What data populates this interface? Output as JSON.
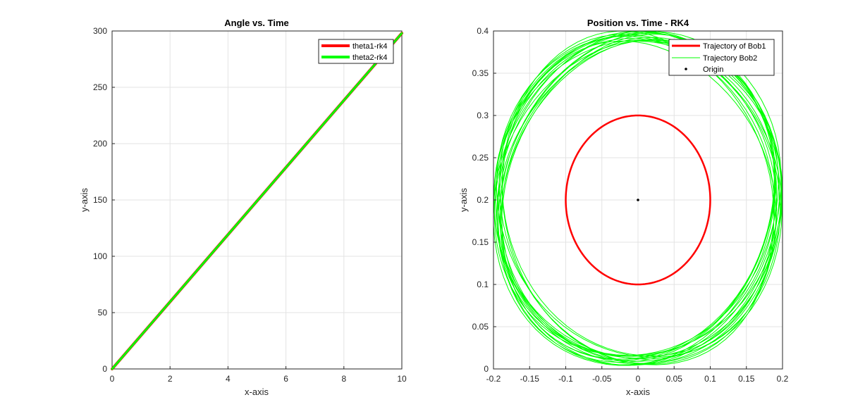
{
  "chart_data": [
    {
      "type": "line",
      "title": "Angle vs. Time",
      "xlabel": "x-axis",
      "ylabel": "y-axis",
      "xlim": [
        0,
        10
      ],
      "ylim": [
        0,
        300
      ],
      "xticks": [
        0,
        2,
        4,
        6,
        8,
        10
      ],
      "yticks": [
        0,
        50,
        100,
        150,
        200,
        250,
        300
      ],
      "grid": true,
      "legend_position": "top-right",
      "series": [
        {
          "name": "theta1-rk4",
          "color": "#ff0000",
          "x": [
            0,
            10
          ],
          "y": [
            0,
            298
          ]
        },
        {
          "name": "theta2-rk4",
          "color": "#00ff00",
          "x": [
            0,
            10
          ],
          "y": [
            0,
            298
          ]
        }
      ]
    },
    {
      "type": "line",
      "title": "Position vs. Time - RK4",
      "xlabel": "x-axis",
      "ylabel": "y-axis",
      "xlim": [
        -0.2,
        0.2
      ],
      "ylim": [
        0,
        0.4
      ],
      "xticks": [
        -0.2,
        -0.15,
        -0.1,
        -0.05,
        0,
        0.05,
        0.1,
        0.15,
        0.2
      ],
      "yticks": [
        0,
        0.05,
        0.1,
        0.15,
        0.2,
        0.25,
        0.3,
        0.35,
        0.4
      ],
      "grid": true,
      "legend_position": "top-right",
      "series": [
        {
          "name": "Trajectory of Bob1",
          "color": "#ff0000",
          "center": [
            0,
            0.2
          ],
          "radius_x": 0.1,
          "radius_y": 0.1
        },
        {
          "name": "Trajectory Bob2",
          "color": "#00ff00",
          "center": [
            0,
            0.2
          ],
          "radius_x": 0.2,
          "radius_y": 0.198,
          "loops": 18
        },
        {
          "name": "Origin",
          "color": "#000000",
          "x": [
            0
          ],
          "y": [
            0.2
          ]
        }
      ]
    }
  ]
}
